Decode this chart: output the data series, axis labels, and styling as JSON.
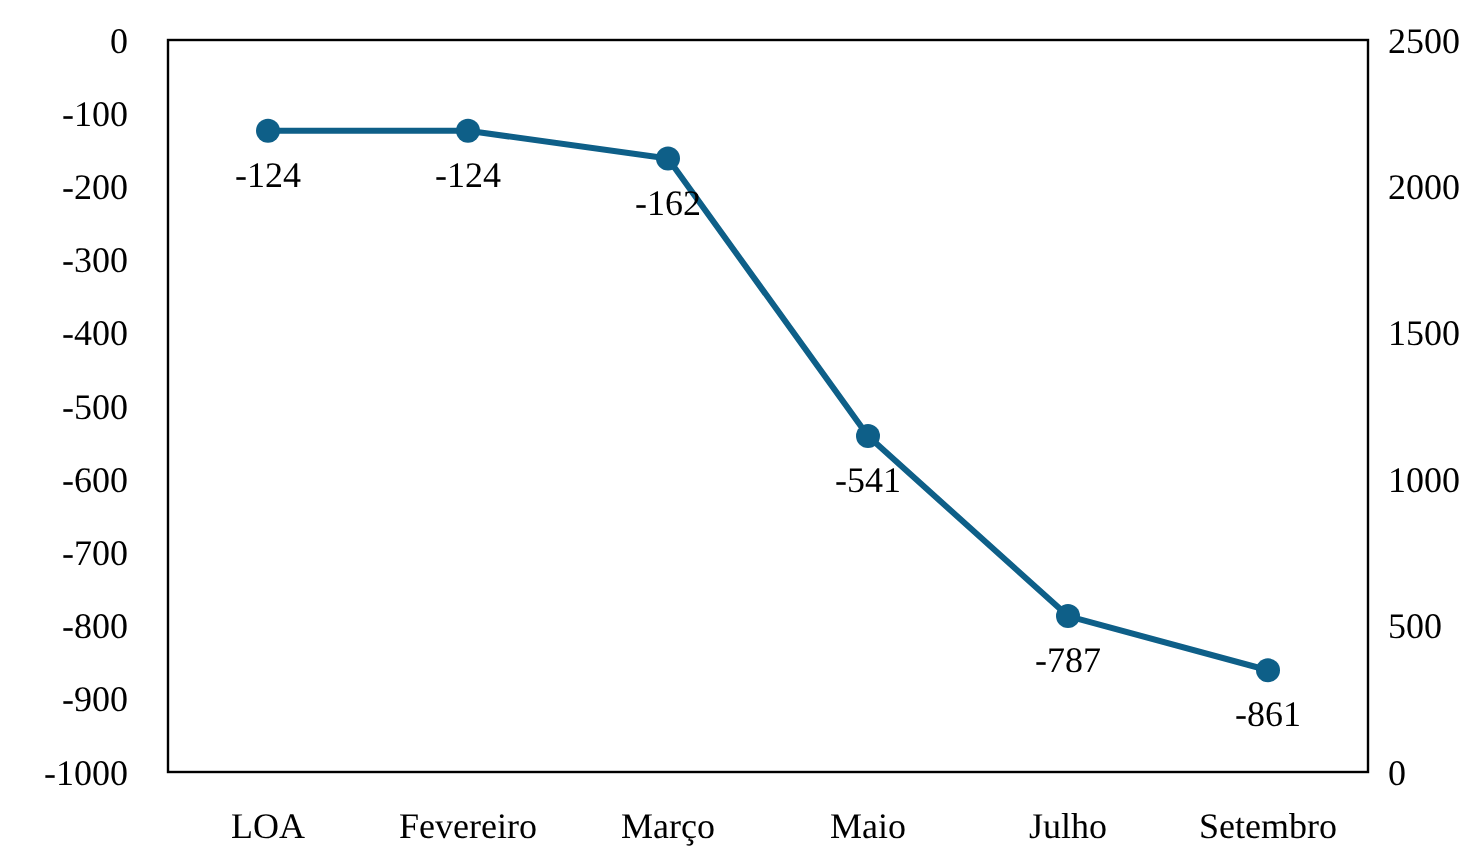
{
  "chart_data": {
    "type": "line",
    "categories": [
      "LOA",
      "Fevereiro",
      "Março",
      "Maio",
      "Julho",
      "Setembro"
    ],
    "series": [
      {
        "color": "#0e5f88",
        "values": [
          -124,
          -124,
          -162,
          -541,
          -787,
          -861
        ]
      }
    ],
    "ylim": [
      -1000,
      0
    ],
    "yticks": [
      -1000,
      -900,
      -800,
      -700,
      -600,
      -500,
      -400,
      -300,
      -200,
      -100,
      0
    ],
    "y2lim": [
      0,
      2500
    ],
    "y2ticks": [
      0,
      500,
      1000,
      1500,
      2000,
      2500
    ],
    "data_labels": true,
    "marker": "circle",
    "line_style": "solid",
    "grid": false
  }
}
